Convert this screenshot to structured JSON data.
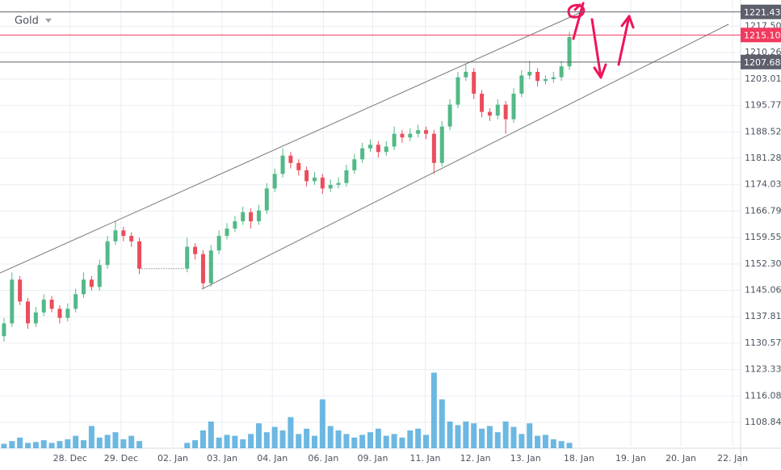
{
  "chart_data": {
    "type": "candlestick",
    "title": "Gold",
    "up_color": "#53b987",
    "down_color": "#eb4d5c",
    "volume_color": "#3ba0d8",
    "grid": true,
    "xlim": [
      -0.5,
      92.5
    ],
    "ylim": [
      1102.2,
      1224.7
    ],
    "vlim": [
      0,
      100
    ],
    "xticks": [
      {
        "value": 8.3,
        "label": "28. Dec"
      },
      {
        "value": 14.7,
        "label": "29. Dec"
      },
      {
        "value": 21.2,
        "label": "02. Jan"
      },
      {
        "value": 27.4,
        "label": "03. Jan"
      },
      {
        "value": 33.7,
        "label": "04. Jan"
      },
      {
        "value": 40.1,
        "label": "06. Jan"
      },
      {
        "value": 46.3,
        "label": "09. Jan"
      },
      {
        "value": 52.9,
        "label": "11. Jan"
      },
      {
        "value": 59.2,
        "label": "12. Jan"
      },
      {
        "value": 65.5,
        "label": "13. Jan"
      },
      {
        "value": 72.2,
        "label": "18. Jan"
      },
      {
        "value": 78.7,
        "label": "19. Jan"
      },
      {
        "value": 85.0,
        "label": "20. Jan"
      },
      {
        "value": 91.5,
        "label": "22. Jan"
      }
    ],
    "yticks": [
      1108.84,
      1116.08,
      1123.33,
      1130.57,
      1137.81,
      1145.06,
      {
        "value": 1152.3,
        "label": "1152.30"
      },
      1159.55,
      1166.79,
      1174.03,
      1181.28,
      1188.52,
      1195.77,
      1203.01,
      1210.26,
      {
        "value": 1217.5,
        "label": "1217.50"
      }
    ],
    "price_lines": [
      {
        "value": 1221.43,
        "label": "1221.43",
        "color": "#5d606b"
      },
      {
        "value": 1215.1,
        "label": "1215.10",
        "color": "#f23a5e"
      },
      {
        "value": 1207.68,
        "label": "1207.68",
        "color": "#5d606b"
      }
    ],
    "x": [
      0,
      1,
      2,
      3,
      4,
      5,
      6,
      7,
      8,
      9,
      10,
      11,
      12,
      13,
      14,
      15,
      16,
      17,
      23,
      24,
      25,
      26,
      27,
      28,
      29,
      30,
      31,
      32,
      33,
      34,
      35,
      36,
      37,
      38,
      39,
      40,
      41,
      42,
      43,
      44,
      45,
      46,
      47,
      48,
      49,
      50,
      51,
      52,
      53,
      54,
      55,
      56,
      57,
      58,
      59,
      60,
      61,
      62,
      63,
      64,
      65,
      66,
      67,
      68,
      69,
      70,
      71
    ],
    "open": [
      1132.5,
      1136,
      1148,
      1142,
      1136,
      1139,
      1142.5,
      1140,
      1137.5,
      1140,
      1144,
      1148,
      1146,
      1152,
      1158.5,
      1161.5,
      1160,
      1158.5,
      1151,
      1157,
      1155,
      1147,
      1156,
      1160,
      1162,
      1164,
      1166.5,
      1164,
      1167,
      1173,
      1177,
      1182,
      1180,
      1178,
      1175,
      1176,
      1173,
      1174,
      1174.5,
      1178,
      1181,
      1184,
      1185,
      1183,
      1184.5,
      1188,
      1187,
      1188,
      1189,
      1188,
      1180,
      1190,
      1196,
      1203.5,
      1205,
      1199,
      1194,
      1193,
      1196,
      1192,
      1199,
      1204,
      1205,
      1202.5,
      1203,
      1203.5,
      1206.5
    ],
    "high": [
      1137.5,
      1150,
      1149,
      1143,
      1140.5,
      1144,
      1143.5,
      1141,
      1141.5,
      1145.5,
      1150,
      1149,
      1153.5,
      1160,
      1164,
      1162.5,
      1161,
      1159.5,
      1159.5,
      1158,
      1156,
      1157.5,
      1161.5,
      1163.5,
      1165.5,
      1168,
      1167.5,
      1168.5,
      1174.5,
      1178.5,
      1184,
      1183,
      1181,
      1179,
      1177.5,
      1177,
      1175.5,
      1176,
      1179.5,
      1182.5,
      1185.5,
      1186.5,
      1186,
      1186,
      1190,
      1189,
      1189.5,
      1190.5,
      1190,
      1189,
      1191.5,
      1197.5,
      1205,
      1207,
      1206,
      1200,
      1195,
      1197.5,
      1197,
      1200.5,
      1205.5,
      1208,
      1206,
      1204,
      1205,
      1208,
      1216
    ],
    "low": [
      1131,
      1135,
      1141,
      1134.5,
      1135,
      1138,
      1139,
      1136,
      1136.5,
      1139,
      1143,
      1145,
      1145,
      1151,
      1157.5,
      1158.5,
      1157,
      1149.5,
      1150,
      1153.5,
      1145.5,
      1146,
      1155,
      1159,
      1161,
      1163,
      1162,
      1163,
      1166,
      1172,
      1176,
      1178.5,
      1176.5,
      1173.5,
      1174,
      1171.5,
      1172,
      1173,
      1173.5,
      1177,
      1180,
      1183,
      1181.5,
      1182,
      1183.5,
      1185.5,
      1186,
      1187,
      1186.5,
      1177,
      1179,
      1189,
      1195,
      1202.5,
      1197.5,
      1192.5,
      1191.5,
      1192,
      1188,
      1191,
      1198,
      1203,
      1201,
      1201.5,
      1202,
      1202.5,
      1205.5
    ],
    "close": [
      1136,
      1148,
      1142,
      1136,
      1139,
      1142.5,
      1140,
      1137.5,
      1140,
      1144,
      1148,
      1146,
      1152,
      1158.5,
      1161.5,
      1160,
      1158.5,
      1151,
      1157,
      1155,
      1147,
      1156,
      1160,
      1162,
      1164,
      1166.5,
      1164,
      1167,
      1173,
      1177,
      1182,
      1180,
      1178,
      1175,
      1176,
      1173,
      1174,
      1174.5,
      1178,
      1181,
      1184,
      1185,
      1183,
      1184.5,
      1188,
      1187,
      1188,
      1189,
      1188,
      1180,
      1190,
      1196,
      1203.5,
      1205,
      1199,
      1194,
      1193,
      1196,
      1192,
      1199,
      1204,
      1205,
      1202.5,
      1203,
      1203.5,
      1206.5,
      1214.5
    ],
    "volume": [
      5,
      8,
      12,
      6,
      7,
      9,
      6,
      8,
      10,
      14,
      9,
      25,
      12,
      15,
      18,
      10,
      14,
      8,
      6,
      9,
      20,
      30,
      12,
      15,
      14,
      10,
      16,
      28,
      18,
      24,
      20,
      35,
      16,
      22,
      14,
      55,
      25,
      20,
      16,
      12,
      15,
      18,
      22,
      14,
      16,
      12,
      20,
      22,
      15,
      85,
      55,
      30,
      26,
      30,
      28,
      22,
      25,
      18,
      30,
      24,
      16,
      28,
      14,
      15,
      10,
      8,
      6
    ]
  }
}
